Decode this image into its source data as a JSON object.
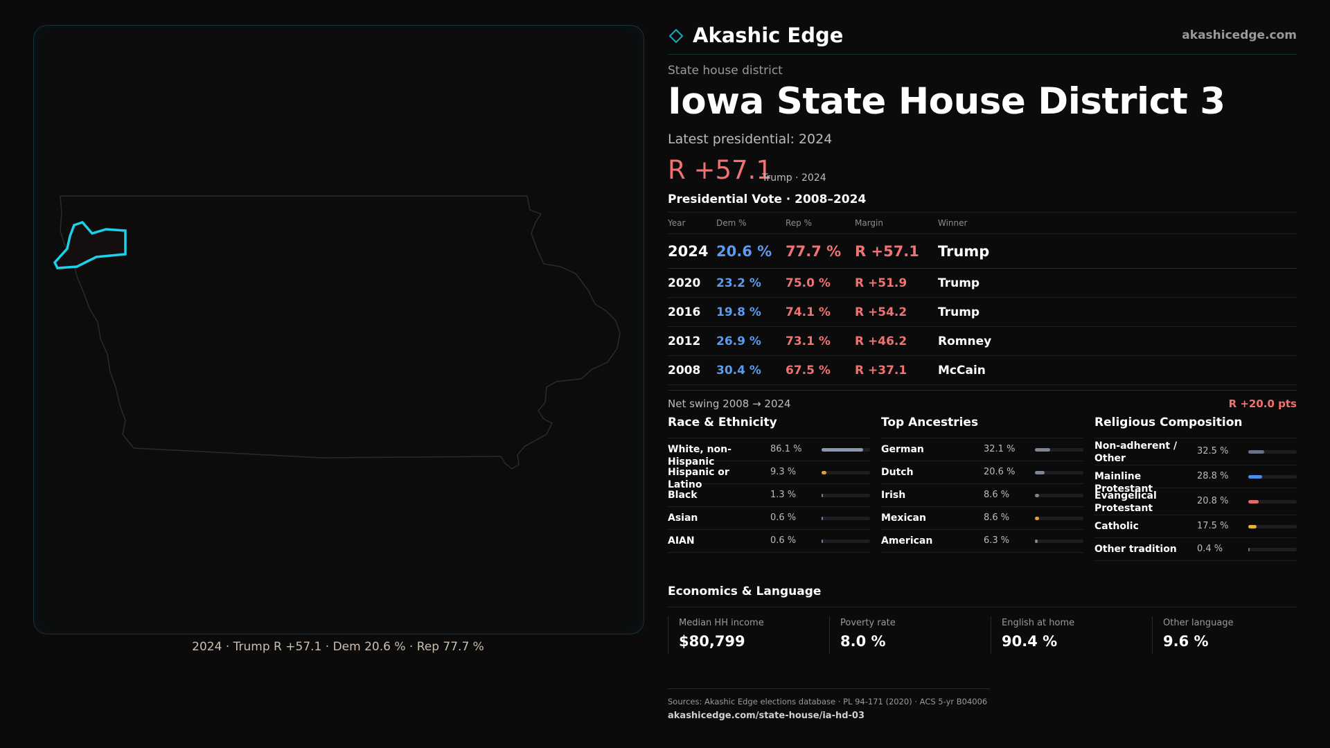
{
  "map": {
    "caption": "2024 · Trump R +57.1 · Dem 20.6 % · Rep 77.7 %",
    "highlight_color": "#19d3ea"
  },
  "brand": {
    "name": "Akashic Edge",
    "url": "akashicedge.com",
    "icon": "diamond-icon"
  },
  "header": {
    "kicker": "State house district",
    "title": "Iowa State House District 3",
    "latest": "Latest presidential: 2024",
    "margin": "R +57.1",
    "margin_sub": "Trump · 2024"
  },
  "presidential": {
    "title": "Presidential Vote · 2008–2024",
    "columns": [
      "Year",
      "Dem %",
      "Rep %",
      "Margin",
      "Winner"
    ],
    "rows": [
      {
        "year": "2024",
        "dem": "20.6 %",
        "rep": "77.7 %",
        "margin": "R +57.1",
        "winner": "Trump"
      },
      {
        "year": "2020",
        "dem": "23.2 %",
        "rep": "75.0 %",
        "margin": "R +51.9",
        "winner": "Trump"
      },
      {
        "year": "2016",
        "dem": "19.8 %",
        "rep": "74.1 %",
        "margin": "R +54.2",
        "winner": "Trump"
      },
      {
        "year": "2012",
        "dem": "26.9 %",
        "rep": "73.1 %",
        "margin": "R +46.2",
        "winner": "Romney"
      },
      {
        "year": "2008",
        "dem": "30.4 %",
        "rep": "67.5 %",
        "margin": "R +37.1",
        "winner": "McCain"
      }
    ],
    "swing_label": "Net swing 2008 → 2024",
    "swing_value": "R +20.0 pts"
  },
  "race": {
    "title": "Race & Ethnicity",
    "items": [
      {
        "label": "White, non-Hispanic",
        "value": "86.1 %",
        "share": 0.861,
        "color": "#8a99ad"
      },
      {
        "label": "Hispanic or Latino",
        "value": "9.3 %",
        "share": 0.093,
        "color": "#e0a13c"
      },
      {
        "label": "Black",
        "value": "1.3 %",
        "share": 0.013,
        "color": "#6f7fa6"
      },
      {
        "label": "Asian",
        "value": "0.6 %",
        "share": 0.006,
        "color": "#6f7fa6"
      },
      {
        "label": "AIAN",
        "value": "0.6 %",
        "share": 0.006,
        "color": "#6f7fa6"
      }
    ]
  },
  "ancestry": {
    "title": "Top Ancestries",
    "items": [
      {
        "label": "German",
        "value": "32.1 %",
        "share": 0.321,
        "color": "#7e8796"
      },
      {
        "label": "Dutch",
        "value": "20.6 %",
        "share": 0.206,
        "color": "#7e8796"
      },
      {
        "label": "Irish",
        "value": "8.6 %",
        "share": 0.086,
        "color": "#7e8796"
      },
      {
        "label": "Mexican",
        "value": "8.6 %",
        "share": 0.086,
        "color": "#e0a13c"
      },
      {
        "label": "American",
        "value": "6.3 %",
        "share": 0.063,
        "color": "#7e8796"
      }
    ]
  },
  "religion": {
    "title": "Religious Composition",
    "items": [
      {
        "label": "Non-adherent / Other",
        "value": "32.5 %",
        "share": 0.325,
        "color": "#6a7382"
      },
      {
        "label": "Mainline Protestant",
        "value": "28.8 %",
        "share": 0.288,
        "color": "#4f8de8"
      },
      {
        "label": "Evangelical Protestant",
        "value": "20.8 %",
        "share": 0.208,
        "color": "#e06a6a"
      },
      {
        "label": "Catholic",
        "value": "17.5 %",
        "share": 0.175,
        "color": "#e5b23a"
      },
      {
        "label": "Other tradition",
        "value": "0.4 %",
        "share": 0.004,
        "color": "#6a7382"
      }
    ]
  },
  "economics": {
    "title": "Economics & Language",
    "items": [
      {
        "label": "Median HH income",
        "value": "$80,799"
      },
      {
        "label": "Poverty rate",
        "value": "8.0 %"
      },
      {
        "label": "English at home",
        "value": "90.4 %"
      },
      {
        "label": "Other language",
        "value": "9.6 %"
      }
    ]
  },
  "sources": {
    "text": "Sources: Akashic Edge elections database · PL 94-171 (2020) · ACS 5-yr B04006",
    "url": "akashicedge.com/state-house/ia-hd-03"
  }
}
